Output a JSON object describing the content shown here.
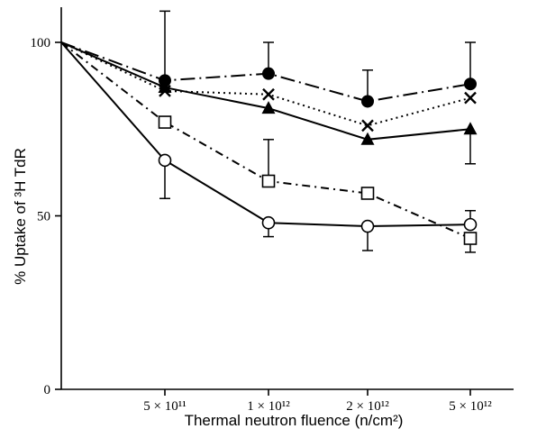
{
  "chart_data": {
    "type": "line",
    "title": "",
    "xlabel": "Thermal neutron fluence (n/cm²)",
    "ylabel": "% Uptake of ³H TdR",
    "x_tick_labels": [
      "5 × 10¹¹",
      "1 × 10¹²",
      "2 × 10¹²",
      "5 × 10¹²"
    ],
    "categories": [
      "0",
      "5 × 10¹¹",
      "1 × 10¹²",
      "2 × 10¹²",
      "5 × 10¹²"
    ],
    "y_ticks": [
      0,
      50,
      100
    ],
    "ylim": [
      0,
      108
    ],
    "grid": false,
    "legend": "none",
    "series": [
      {
        "marker": "filled-circle",
        "line_style": "long-dash-dot",
        "values": [
          100,
          89,
          91,
          83,
          88
        ],
        "err_upper": [
          0,
          20,
          9,
          9,
          12
        ],
        "err_lower": [
          0,
          0,
          0,
          0,
          0
        ]
      },
      {
        "marker": "cross",
        "line_style": "dotted",
        "values": [
          100,
          86,
          85,
          76,
          84
        ],
        "err_upper": [
          0,
          0,
          0,
          0,
          0
        ],
        "err_lower": [
          0,
          0,
          0,
          0,
          0
        ]
      },
      {
        "marker": "filled-triangle",
        "line_style": "solid",
        "values": [
          100,
          87,
          81,
          72,
          75
        ],
        "err_upper": [
          0,
          0,
          0,
          0,
          0
        ],
        "err_lower": [
          0,
          0,
          0,
          0,
          10
        ]
      },
      {
        "marker": "open-square",
        "line_style": "dash-dot",
        "values": [
          100,
          77,
          60,
          56.5,
          43.5
        ],
        "err_upper": [
          0,
          0,
          12,
          0,
          0
        ],
        "err_lower": [
          0,
          0,
          0,
          0,
          4
        ]
      },
      {
        "marker": "open-circle",
        "line_style": "solid",
        "values": [
          100,
          66,
          48,
          47,
          47.5
        ],
        "err_upper": [
          0,
          0,
          0,
          0,
          4
        ],
        "err_lower": [
          0,
          11,
          4,
          7,
          0
        ]
      }
    ]
  }
}
